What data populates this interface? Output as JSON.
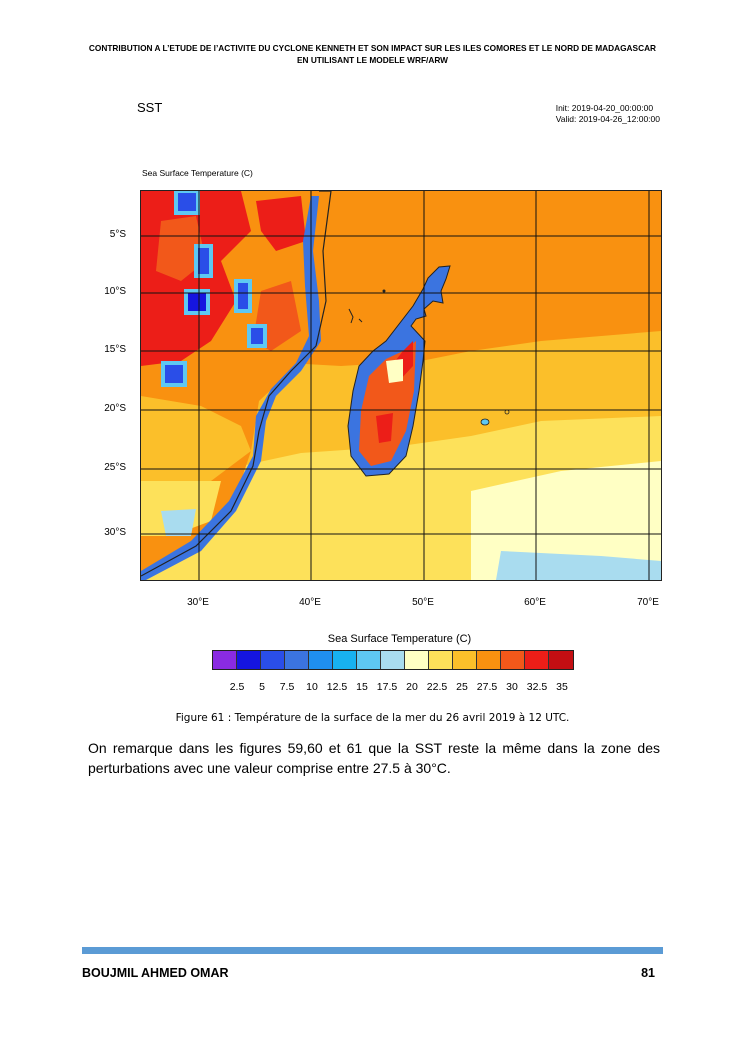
{
  "header": {
    "line1": "CONTRIBUTION A L’ETUDE DE l’ACTIVITE DU CYCLONE KENNETH ET SON IMPACT SUR LES ILES COMORES ET LE NORD DE MADAGASCAR",
    "line2": "EN UTILISANT LE MODELE WRF/ARW"
  },
  "figure": {
    "title": "SST",
    "init": "Init: 2019-04-20_00:00:00",
    "valid": "Valid: 2019-04-26_12:00:00",
    "map_title": "Sea Surface Temperature   (C)",
    "lat_labels": [
      "5°S",
      "10°S",
      "15°S",
      "20°S",
      "25°S",
      "30°S"
    ],
    "lon_labels": [
      "30°E",
      "40°E",
      "50°E",
      "60°E",
      "70°E"
    ],
    "colorbar_title": "Sea Surface Temperature  (C)",
    "colorbar_labels": [
      "2.5",
      "5",
      "7.5",
      "10",
      "12.5",
      "15",
      "17.5",
      "20",
      "22.5",
      "25",
      "27.5",
      "30",
      "32.5",
      "35"
    ],
    "colorbar_colors": [
      "#8a2be2",
      "#1515e0",
      "#2a4ee8",
      "#3b74e0",
      "#1f8ff0",
      "#18b2f0",
      "#5ec8f2",
      "#a9dcef",
      "#ffffc4",
      "#fde15a",
      "#fbbf2a",
      "#f99110",
      "#f2581a",
      "#ec1e18",
      "#c40e12"
    ],
    "caption": "Figure 61 : Température de la surface de la mer du 26 avril 2019 à 12 UTC."
  },
  "paragraph": "On remarque dans les figures 59,60 et 61 que la SST reste la même dans la zone des perturbations avec une valeur comprise entre 27.5 à 30°C.",
  "footer": {
    "author": "BOUJMIL AHMED OMAR",
    "page": "81"
  }
}
